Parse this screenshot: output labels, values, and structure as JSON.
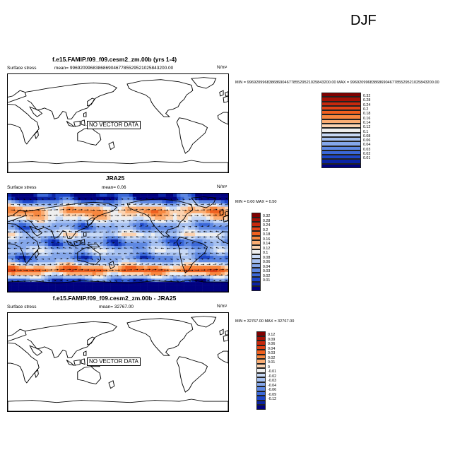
{
  "season": "DJF",
  "panels": [
    {
      "title": "f.e15.FAMIP.f09_f09.cesm2_zm.00b (yrs 1-4)",
      "left_label": "Surface stress",
      "mean_label": "mean= 99692099683868690467785529521025843200.00",
      "units": "N/m",
      "units_sup": "2",
      "minmax": "MIN = 99692099683868690467785529521025843200.00 MAX = 99692099683868690467785529521025843200.00",
      "overlay_text": "NO VECTOR DATA",
      "has_field": false
    },
    {
      "title": "JRA25",
      "left_label": "Surface stress",
      "mean_label": "mean=   0.06",
      "units": "N/m",
      "units_sup": "2",
      "minmax": "MIN =   0.00 MAX =   0.50",
      "overlay_text": "",
      "has_field": true
    },
    {
      "title": "f.e15.FAMIP.f09_f09.cesm2_zm.00b - JRA25",
      "left_label": "Surface stress",
      "mean_label": "mean= 32767.00",
      "units": "N/m",
      "units_sup": "2",
      "minmax": "MIN = 32767.00 MAX = 32767.00",
      "overlay_text": "NO VECTOR DATA",
      "has_field": false
    }
  ],
  "colorbars": [
    {
      "labels": [
        "0.32",
        "0.28",
        "0.24",
        "0.2",
        "0.18",
        "0.16",
        "0.14",
        "0.12",
        "0.1",
        "0.08",
        "0.06",
        "0.04",
        "0.03",
        "0.02",
        "0.01"
      ],
      "colors": [
        "#800000",
        "#a51005",
        "#c8280c",
        "#e24215",
        "#f0601f",
        "#f7873f",
        "#fbad73",
        "#fcd3b0",
        "#eeeeee",
        "#c8d9f5",
        "#a7c1f0",
        "#85a7ea",
        "#5e88e2",
        "#3b68d8",
        "#1d46c9",
        "#0a23a5",
        "#000080"
      ]
    },
    {
      "labels": [
        "0.32",
        "0.28",
        "0.24",
        "0.2",
        "0.18",
        "0.16",
        "0.14",
        "0.12",
        "0.1",
        "0.08",
        "0.06",
        "0.04",
        "0.03",
        "0.02",
        "0.01"
      ],
      "colors": [
        "#800000",
        "#a51005",
        "#c8280c",
        "#e24215",
        "#f0601f",
        "#f7873f",
        "#fbad73",
        "#fcd3b0",
        "#eeeeee",
        "#c8d9f5",
        "#a7c1f0",
        "#85a7ea",
        "#5e88e2",
        "#3b68d8",
        "#1d46c9",
        "#0a23a5",
        "#000080"
      ]
    },
    {
      "labels": [
        "0.12",
        "0.09",
        "0.06",
        "0.04",
        "0.03",
        "0.02",
        "0.01",
        "0",
        "-0.01",
        "-0.02",
        "-0.03",
        "-0.04",
        "-0.06",
        "-0.09",
        "-0.12"
      ],
      "colors": [
        "#800000",
        "#a51005",
        "#c8280c",
        "#e24215",
        "#f0601f",
        "#f7873f",
        "#fbad73",
        "#fcd3b0",
        "#eeeeee",
        "#c8d9f5",
        "#a7c1f0",
        "#85a7ea",
        "#5e88e2",
        "#3b68d8",
        "#1d46c9",
        "#0a23a5",
        "#000080"
      ]
    }
  ],
  "chart_data": [
    {
      "type": "heatmap",
      "title": "f.e15.FAMIP.f09_f09.cesm2_zm.00b (yrs 1-4)",
      "variable": "Surface stress",
      "units": "N/m2",
      "mean": "99692099683868690467785529521025843200.00",
      "min": "99692099683868690467785529521025843200.00",
      "max": "99692099683868690467785529521025843200.00",
      "note": "NO VECTOR DATA"
    },
    {
      "type": "heatmap",
      "title": "JRA25",
      "variable": "Surface stress",
      "units": "N/m2",
      "mean": 0.06,
      "min": 0.0,
      "max": 0.5,
      "contour_levels": [
        0.01,
        0.02,
        0.03,
        0.04,
        0.06,
        0.08,
        0.1,
        0.12,
        0.14,
        0.16,
        0.18,
        0.2,
        0.24,
        0.28,
        0.32
      ],
      "lon_range": [
        0,
        360
      ],
      "lat_range": [
        -90,
        90
      ],
      "lat_bands": [
        {
          "lat": 80,
          "value": 0.01
        },
        {
          "lat": 60,
          "value": 0.18
        },
        {
          "lat": 45,
          "value": 0.14
        },
        {
          "lat": 30,
          "value": 0.05
        },
        {
          "lat": 15,
          "value": 0.12
        },
        {
          "lat": 0,
          "value": 0.04
        },
        {
          "lat": -15,
          "value": 0.1
        },
        {
          "lat": -30,
          "value": 0.04
        },
        {
          "lat": -50,
          "value": 0.22
        },
        {
          "lat": -70,
          "value": 0.03
        }
      ]
    },
    {
      "type": "heatmap",
      "title": "f.e15.FAMIP.f09_f09.cesm2_zm.00b - JRA25",
      "variable": "Surface stress",
      "units": "N/m2",
      "mean": 32767.0,
      "min": 32767.0,
      "max": 32767.0,
      "contour_levels": [
        -0.12,
        -0.09,
        -0.06,
        -0.04,
        -0.03,
        -0.02,
        -0.01,
        0,
        0.01,
        0.02,
        0.03,
        0.04,
        0.06,
        0.09,
        0.12
      ],
      "note": "NO VECTOR DATA"
    }
  ]
}
